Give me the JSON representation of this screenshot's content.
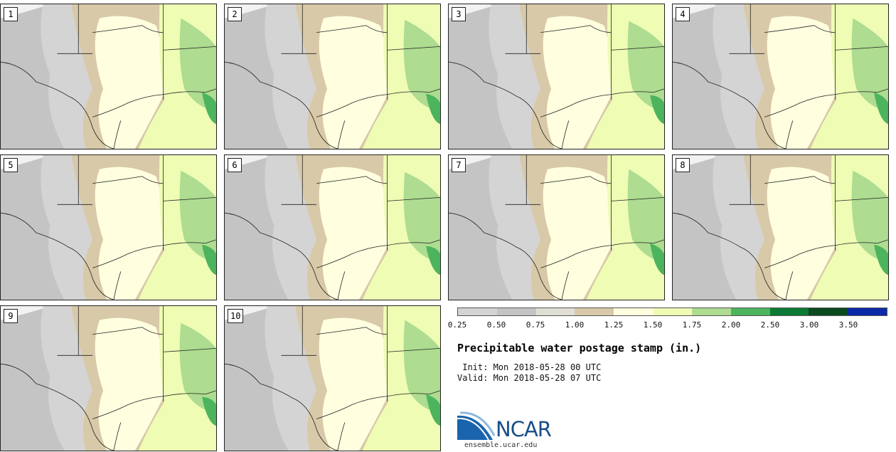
{
  "panels": [
    {
      "label": "1"
    },
    {
      "label": "2"
    },
    {
      "label": "3"
    },
    {
      "label": "4"
    },
    {
      "label": "5"
    },
    {
      "label": "6"
    },
    {
      "label": "7"
    },
    {
      "label": "8"
    },
    {
      "label": "9"
    },
    {
      "label": "10"
    }
  ],
  "colorbar": {
    "ticks": [
      "0.25",
      "0.50",
      "0.75",
      "1.00",
      "1.25",
      "1.50",
      "1.75",
      "2.00",
      "2.50",
      "3.00",
      "3.50"
    ],
    "colors": [
      "#d4d4d4",
      "#c4c4c4",
      "#e0dfd4",
      "#d8c9a8",
      "#ffffe0",
      "#eefcb4",
      "#aedc90",
      "#4cb45c",
      "#0c7a34",
      "#0a4a20",
      "#0a2aa8"
    ]
  },
  "title": "Precipitable water postage stamp (in.)",
  "init_line": " Init: Mon 2018-05-28 00 UTC",
  "valid_line": "Valid: Mon 2018-05-28 07 UTC",
  "logo": {
    "text": "NCAR",
    "url": "ensemble.ucar.edu"
  }
}
